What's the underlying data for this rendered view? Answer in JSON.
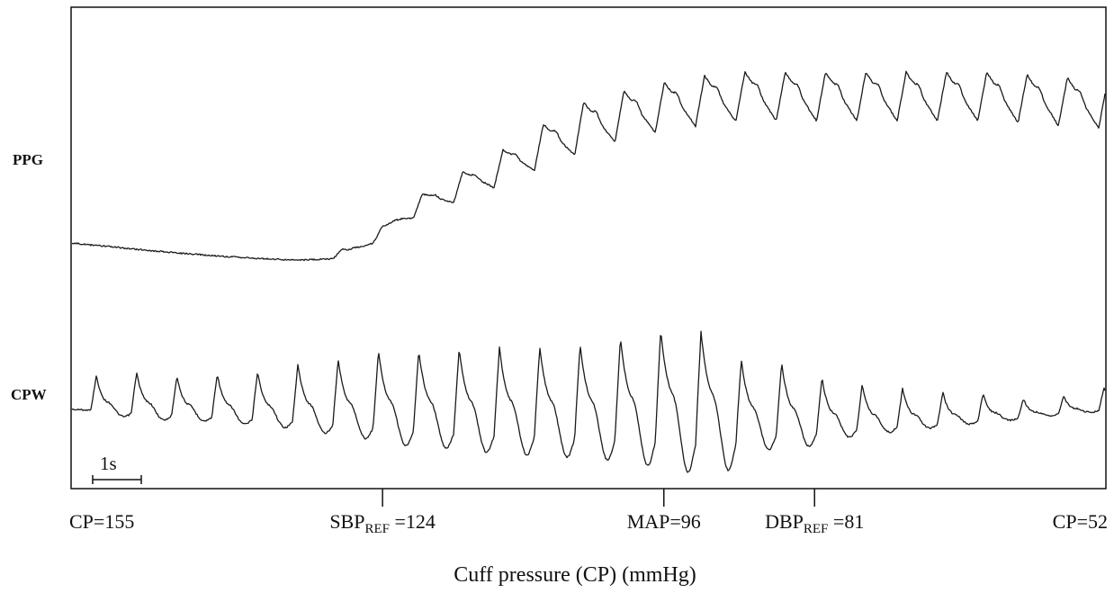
{
  "chart_data": {
    "type": "line",
    "xlabel": "Cuff pressure (CP) (mmHg)",
    "ylabel": "",
    "series": [
      {
        "name": "PPG",
        "label": "PPG"
      },
      {
        "name": "CPW",
        "label": "CPW"
      }
    ],
    "beats": {
      "cpw_amplitude": [
        0.35,
        0.4,
        0.38,
        0.42,
        0.46,
        0.55,
        0.62,
        0.72,
        0.74,
        0.78,
        0.8,
        0.82,
        0.85,
        0.92,
        1.0,
        0.98,
        0.7,
        0.66,
        0.5,
        0.42,
        0.36,
        0.3,
        0.26,
        0.18,
        0.18,
        0.22
      ],
      "ppg_level": [
        0.0,
        0.0,
        0.0,
        0.0,
        0.0,
        0.0,
        0.02,
        0.08,
        0.22,
        0.34,
        0.46,
        0.6,
        0.72,
        0.82,
        0.9,
        0.96,
        1.0,
        1.0,
        1.0,
        1.0,
        1.0,
        1.0,
        1.0,
        0.98,
        0.95,
        0.93
      ]
    },
    "scale_bar": {
      "label": "1s",
      "seconds": 1
    },
    "markers": [
      {
        "id": "cp-start",
        "text": "CP=155",
        "value": 155,
        "tick": false
      },
      {
        "id": "sbp",
        "text_main": "SBP",
        "text_sub": "REF",
        "text_rest": " =124",
        "value": 124,
        "tick": true
      },
      {
        "id": "map",
        "text": "MAP=96",
        "value": 96,
        "tick": true
      },
      {
        "id": "dbp",
        "text_main": "DBP",
        "text_sub": "REF",
        "text_rest": " =81",
        "value": 81,
        "tick": true
      },
      {
        "id": "cp-end",
        "text": "CP=52",
        "value": 52,
        "tick": false
      }
    ],
    "grid": false,
    "legend": "none"
  }
}
